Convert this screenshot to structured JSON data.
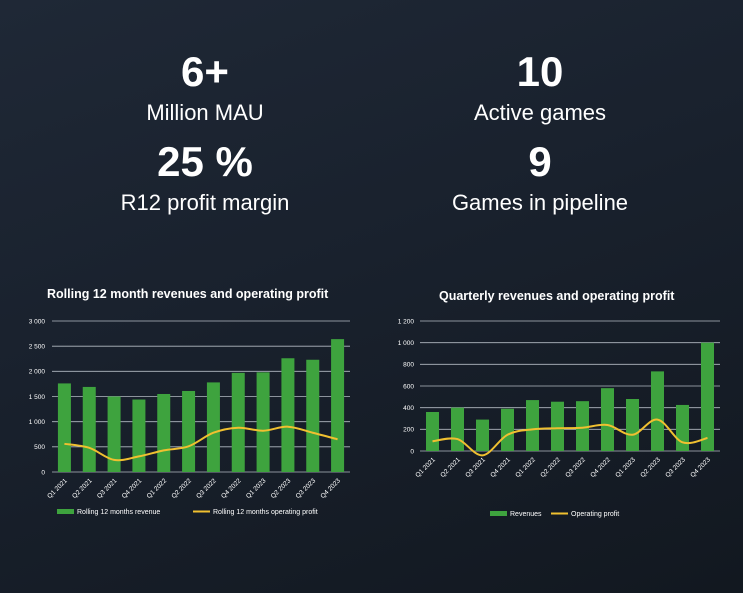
{
  "kpis": [
    {
      "value": "6+",
      "label": "Million MAU"
    },
    {
      "value": "25 %",
      "label": "R12 profit margin"
    },
    {
      "value": "10",
      "label": "Active games"
    },
    {
      "value": "9",
      "label": "Games in pipeline"
    }
  ],
  "colors": {
    "bar": "#3ea33e",
    "line": "#f0c030",
    "grid": "#cfd6de"
  },
  "chart_data": [
    {
      "type": "bar",
      "title": "Rolling 12 month revenues and operating profit",
      "categories": [
        "Q1 2021",
        "Q2 2021",
        "Q3 2021",
        "Q4 2021",
        "Q1 2022",
        "Q2 2022",
        "Q3 2022",
        "Q4 2022",
        "Q1 2023",
        "Q2 2023",
        "Q3 2023",
        "Q4 2023"
      ],
      "series": [
        {
          "name": "Rolling 12 months revenue",
          "kind": "bar",
          "values": [
            1760,
            1690,
            1500,
            1440,
            1550,
            1610,
            1780,
            1970,
            1980,
            2260,
            2230,
            2640
          ]
        },
        {
          "name": "Rolling 12 months operating profit",
          "kind": "line",
          "values": [
            560,
            480,
            240,
            310,
            430,
            510,
            780,
            880,
            820,
            900,
            780,
            650
          ]
        }
      ],
      "ylim": [
        0,
        3000
      ],
      "yticks": [
        0,
        500,
        1000,
        1500,
        2000,
        2500,
        3000
      ],
      "ytick_labels": [
        "0",
        "500",
        "1 000",
        "1 500",
        "2 000",
        "2 500",
        "3 000"
      ],
      "grid": true,
      "legend": "bottom"
    },
    {
      "type": "bar",
      "title": "Quarterly revenues and operating profit",
      "categories": [
        "Q1 2021",
        "Q2 2021",
        "Q3 2021",
        "Q4 2021",
        "Q1 2022",
        "Q2 2022",
        "Q3 2022",
        "Q4 2022",
        "Q1 2023",
        "Q2 2023",
        "Q3 2023",
        "Q4 2023"
      ],
      "series": [
        {
          "name": "Revenues",
          "kind": "bar",
          "values": [
            360,
            400,
            290,
            390,
            470,
            455,
            460,
            580,
            480,
            735,
            425,
            1000
          ]
        },
        {
          "name": "Operating profit",
          "kind": "line",
          "values": [
            90,
            110,
            -40,
            150,
            200,
            210,
            215,
            240,
            150,
            290,
            80,
            120
          ]
        }
      ],
      "ylim": [
        0,
        1200
      ],
      "yticks": [
        0,
        200,
        400,
        600,
        800,
        1000,
        1200
      ],
      "ytick_labels": [
        "0",
        "200",
        "400",
        "600",
        "800",
        "1 000",
        "1 200"
      ],
      "grid": true,
      "legend": "bottom"
    }
  ]
}
